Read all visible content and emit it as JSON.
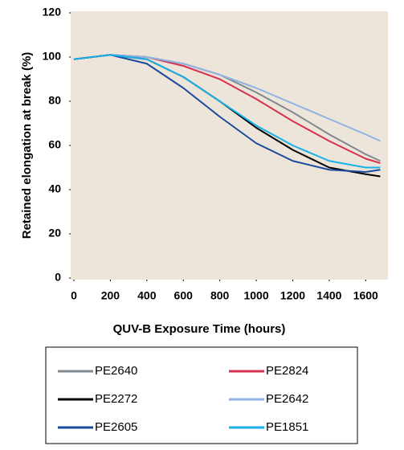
{
  "chart_data": {
    "type": "line",
    "xlabel": "QUV-B Exposure Time (hours)",
    "ylabel": "Retained elongation at break (%)",
    "x": [
      0,
      200,
      400,
      600,
      800,
      1000,
      1200,
      1400,
      1600,
      1680
    ],
    "xlim": [
      0,
      1700
    ],
    "xticks": [
      0,
      200,
      400,
      600,
      800,
      1000,
      1200,
      1400,
      1600
    ],
    "ylim": [
      0,
      120
    ],
    "yticks": [
      0,
      20,
      40,
      60,
      80,
      100,
      120
    ],
    "series": [
      {
        "name": "PE2640",
        "color": "#7f898e",
        "values": [
          99,
          101,
          100,
          97,
          92,
          84,
          75,
          65,
          56,
          53
        ]
      },
      {
        "name": "PE2824",
        "color": "#d6314f",
        "values": [
          99,
          101,
          100,
          96,
          90,
          81,
          71,
          62,
          54,
          52
        ]
      },
      {
        "name": "PE2272",
        "color": "#000000",
        "values": [
          99,
          101,
          99,
          91,
          80,
          68,
          58,
          50,
          47,
          46
        ]
      },
      {
        "name": "PE2642",
        "color": "#8fb4e3",
        "values": [
          99,
          101,
          100,
          97,
          92,
          86,
          79,
          72,
          65,
          62
        ]
      },
      {
        "name": "PE2605",
        "color": "#1a4a9c",
        "values": [
          99,
          101,
          97,
          86,
          73,
          61,
          53,
          49,
          48,
          49
        ]
      },
      {
        "name": "PE1851",
        "color": "#1ab0e8",
        "values": [
          99,
          101,
          99,
          91,
          80,
          69,
          60,
          53,
          50,
          50
        ]
      }
    ]
  }
}
